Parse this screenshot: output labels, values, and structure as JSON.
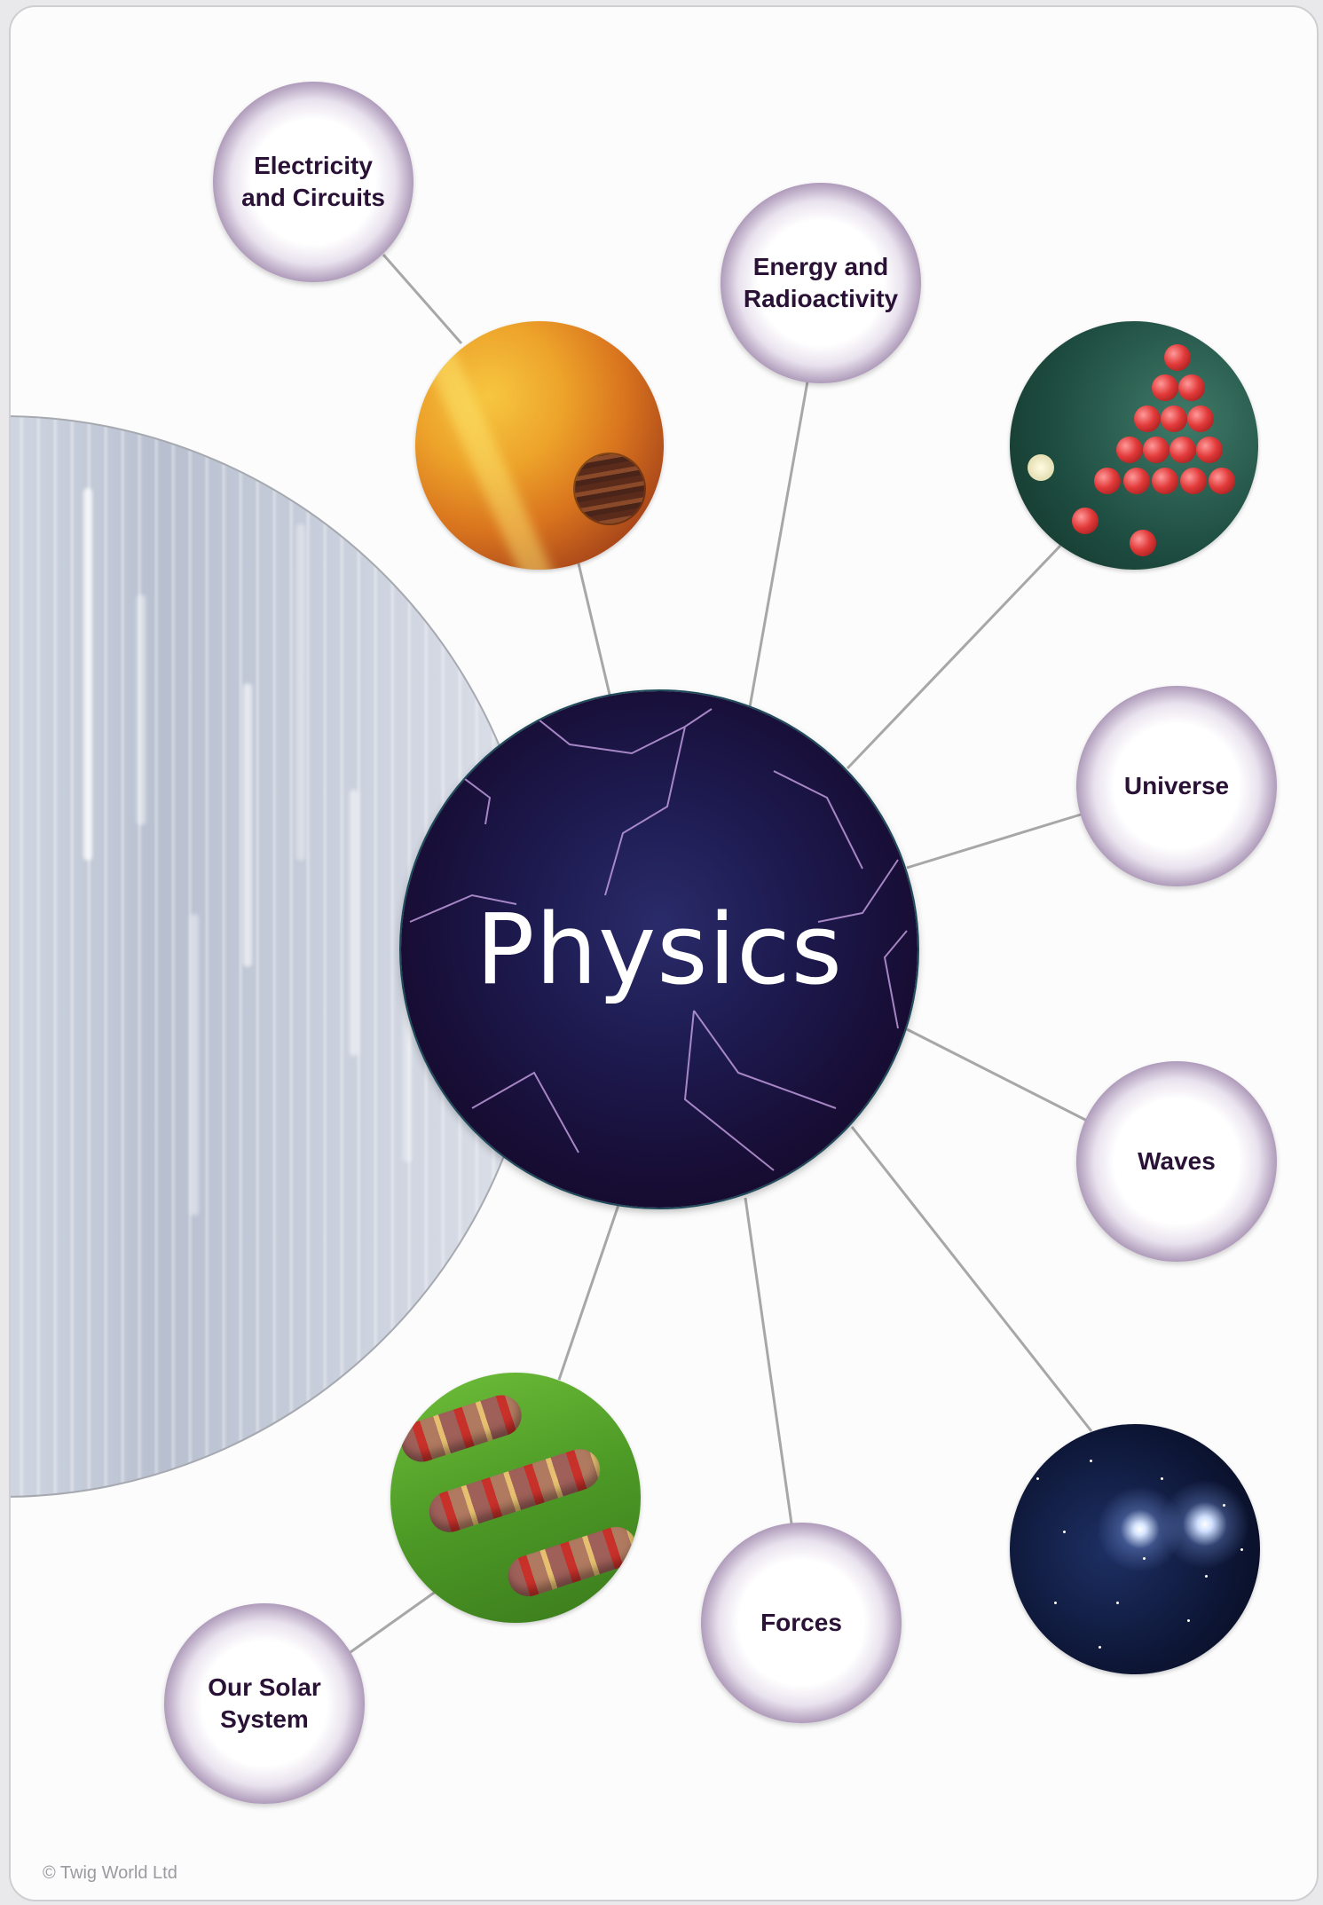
{
  "diagram": {
    "center": {
      "label": "Physics"
    },
    "topics": [
      {
        "id": "electricity",
        "label": "Electricity\nand Circuits"
      },
      {
        "id": "energy",
        "label": "Energy and\nRadioactivity"
      },
      {
        "id": "universe",
        "label": "Universe"
      },
      {
        "id": "waves",
        "label": "Waves"
      },
      {
        "id": "forces",
        "label": "Forces"
      },
      {
        "id": "solar",
        "label": "Our Solar\nSystem"
      }
    ],
    "images": [
      "sun-image",
      "atoms-image",
      "circuit-image",
      "stars-image"
    ]
  },
  "footer": {
    "copyright": "© Twig World Ltd"
  },
  "colors": {
    "hub": "#170c32",
    "node_rim": "#2b1638",
    "node_text": "#2a1236",
    "connector": "#a7a7a7"
  }
}
